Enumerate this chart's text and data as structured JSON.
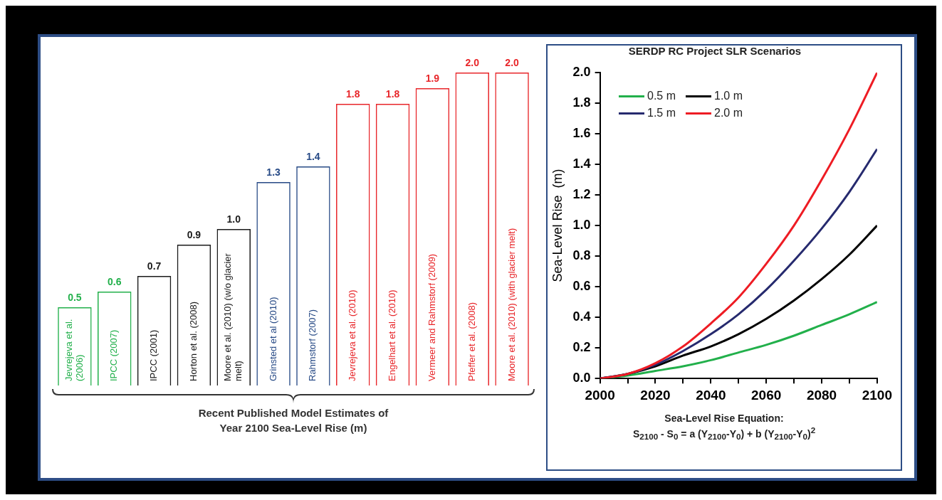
{
  "chart_data": [
    {
      "type": "bar",
      "xlabel": "Recent Published Model Estimates of\nYear 2100 Sea-Level Rise (m)",
      "categories": [
        "Jevrejeva et al. (2006)",
        "IPCC (2007)",
        "IPCC (2001)",
        "Horton et al. (2008)",
        "Moore et al. (2010) (w/o glacier melt)",
        "Grinsted et al (2010)",
        "Rahmstorf (2007)",
        "Jevrejeva et al. (2010)",
        "Engelhart et al. (2010)",
        "Vermeer and Rahmstorf (2009)",
        "Pfeffer et al. (2008)",
        "Moore et al. (2010) (with glacier melt)"
      ],
      "values": [
        0.5,
        0.6,
        0.7,
        0.9,
        1.0,
        1.3,
        1.4,
        1.8,
        1.8,
        1.9,
        2.0,
        2.0
      ],
      "colors": [
        "#22b04b",
        "#22b04b",
        "#1a1a1a",
        "#1a1a1a",
        "#1a1a1a",
        "#274a86",
        "#274a86",
        "#e8262a",
        "#e8262a",
        "#e8262a",
        "#e8262a",
        "#e8262a"
      ],
      "value_labels": [
        "0.5",
        "0.6",
        "0.7",
        "0.9",
        "1.0",
        "1.3",
        "1.4",
        "1.8",
        "1.8",
        "1.9",
        "2.0",
        "2.0"
      ]
    },
    {
      "type": "line",
      "title": "SERDP RC Project SLR Scenarios",
      "ylabel": "Sea-Level Rise  (m)",
      "annotations": [
        "Sea-Level Rise Equation:",
        "S$_{2100}$ - S$_{0}$  =  a (Y$_{2100}$-Y$_{0}$) + b (Y$_{2100}$-Y$_{0}$)$^{2}$"
      ],
      "x": [
        2000,
        2010,
        2020,
        2030,
        2040,
        2050,
        2060,
        2070,
        2080,
        2090,
        2100
      ],
      "series": [
        {
          "name": "0.5 m",
          "color": "#22b04b",
          "values": [
            0,
            0.02,
            0.05,
            0.08,
            0.12,
            0.17,
            0.22,
            0.28,
            0.35,
            0.42,
            0.5
          ]
        },
        {
          "name": "1.0 m",
          "color": "#000000",
          "values": [
            0,
            0.03,
            0.08,
            0.15,
            0.21,
            0.29,
            0.39,
            0.51,
            0.65,
            0.81,
            1.0
          ]
        },
        {
          "name": "1.5 m",
          "color": "#262a6e",
          "values": [
            0,
            0.03,
            0.09,
            0.18,
            0.29,
            0.42,
            0.58,
            0.77,
            0.98,
            1.22,
            1.5
          ]
        },
        {
          "name": "2.0 m",
          "color": "#ee1c24",
          "values": [
            0,
            0.03,
            0.1,
            0.21,
            0.36,
            0.53,
            0.75,
            1.0,
            1.3,
            1.63,
            2.0
          ]
        }
      ],
      "xlim": [
        2000,
        2100
      ],
      "xticks": [
        2000,
        {
          "value": 2010,
          "label": null
        },
        2020,
        {
          "value": 2030,
          "label": null
        },
        2040,
        {
          "value": 2050,
          "label": null
        },
        2060,
        {
          "value": 2070,
          "label": null
        },
        2080,
        {
          "value": 2090,
          "label": null
        },
        2100
      ],
      "ylim": [
        0,
        2.0
      ],
      "yticks": [
        {
          "value": 0,
          "label": "0.0"
        },
        0.2,
        0.4,
        0.6,
        0.8,
        {
          "value": 1,
          "label": "1.0"
        },
        1.2,
        1.4,
        1.6,
        1.8,
        {
          "value": 2,
          "label": "2.0"
        }
      ],
      "grid": false,
      "legend": "top left",
      "marker": "none",
      "line_style": "solid"
    }
  ]
}
